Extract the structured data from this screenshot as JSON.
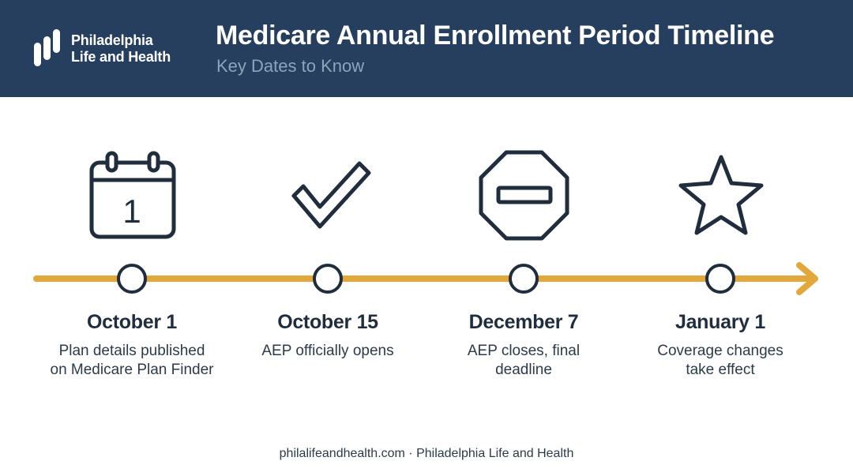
{
  "brand": {
    "name_line1": "Philadelphia",
    "name_line2": "Life and Health"
  },
  "header": {
    "title": "Medicare Annual Enrollment Period Timeline",
    "subtitle": "Key Dates to Know"
  },
  "colors": {
    "header_bg": "#263f5e",
    "accent": "#e3a83b",
    "icon_stroke": "#1f2d3d"
  },
  "milestones": [
    {
      "date": "October 1",
      "desc_line1": "Plan details published",
      "desc_line2": "on Medicare Plan Finder",
      "icon": "calendar-icon",
      "icon_text": "1"
    },
    {
      "date": "October 15",
      "desc_line1": "AEP officially opens",
      "desc_line2": "",
      "icon": "checkmark-icon"
    },
    {
      "date": "December 7",
      "desc_line1": "AEP closes, final",
      "desc_line2": "deadline",
      "icon": "stop-sign-icon"
    },
    {
      "date": "January 1",
      "desc_line1": "Coverage changes",
      "desc_line2": "take effect",
      "icon": "star-icon"
    }
  ],
  "footer": {
    "text": "philalifeandhealth.com · Philadelphia Life and Health"
  }
}
